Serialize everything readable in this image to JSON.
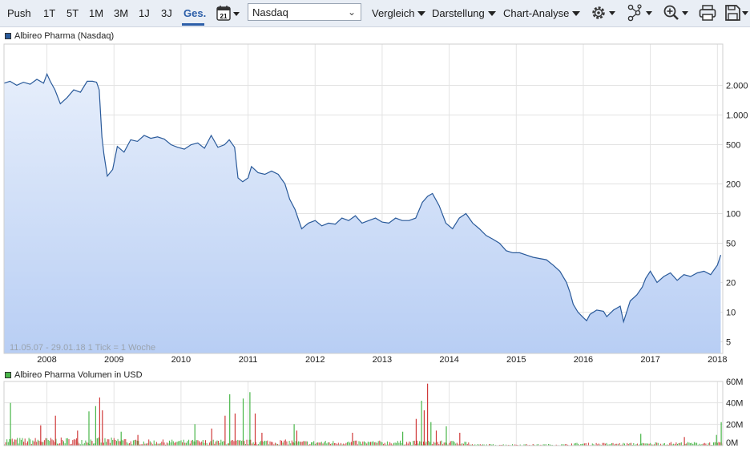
{
  "toolbar": {
    "ranges": [
      "Push",
      "1T",
      "5T",
      "1M",
      "3M",
      "1J",
      "3J",
      "Ges."
    ],
    "active_range": "Ges.",
    "calendar_day": "21",
    "exchange": "Nasdaq",
    "menus": [
      "Vergleich",
      "Darstellung",
      "Chart-Analyse"
    ],
    "icons": [
      "gear-icon",
      "network-icon",
      "zoom-icon",
      "print-icon",
      "save-icon"
    ]
  },
  "price_legend": "Albireo Pharma (Nasdaq)",
  "volume_legend": "Albireo Pharma Volumen in USD",
  "range_note": "11.05.07 - 29.01.18   1 Tick = 1 Woche",
  "colors": {
    "line": "#2a5a9a",
    "area_top": "#e6eefb",
    "area_bottom": "#b8cef4",
    "vol_up": "#49b649",
    "vol_down": "#d03a3a",
    "grid": "#e3e3e3",
    "toolbar_bg": "#e9eef5",
    "accent": "#2c5ea8"
  },
  "chart_data": [
    {
      "type": "area",
      "title": "Albireo Pharma (Nasdaq)",
      "y_scale": "log",
      "yticks": [
        5,
        10,
        20,
        50,
        100,
        200,
        500,
        1000,
        2000
      ],
      "ytick_labels": [
        "5",
        "10",
        "20",
        "50",
        "100",
        "200",
        "500",
        "1.000",
        "2.000"
      ],
      "xticks": [
        2008,
        2009,
        2010,
        2011,
        2012,
        2013,
        2014,
        2015,
        2016,
        2017,
        2018
      ],
      "x_range": [
        2007.36,
        2018.08
      ],
      "grid": true,
      "series": [
        {
          "x": [
            2007.36,
            2007.45,
            2007.55,
            2007.65,
            2007.75,
            2007.85,
            2007.95,
            2008.0,
            2008.05,
            2008.12,
            2008.2,
            2008.3,
            2008.4,
            2008.5,
            2008.6,
            2008.68,
            2008.74,
            2008.78,
            2008.82,
            2008.85,
            2008.9,
            2008.98,
            2009.05,
            2009.15,
            2009.25,
            2009.35,
            2009.45,
            2009.55,
            2009.65,
            2009.75,
            2009.85,
            2009.95,
            2010.05,
            2010.15,
            2010.25,
            2010.35,
            2010.45,
            2010.55,
            2010.65,
            2010.72,
            2010.8,
            2010.85,
            2010.92,
            2011.0,
            2011.05,
            2011.15,
            2011.25,
            2011.35,
            2011.45,
            2011.55,
            2011.62,
            2011.7,
            2011.8,
            2011.9,
            2012.0,
            2012.1,
            2012.2,
            2012.3,
            2012.4,
            2012.5,
            2012.6,
            2012.7,
            2012.8,
            2012.9,
            2013.0,
            2013.1,
            2013.2,
            2013.3,
            2013.4,
            2013.5,
            2013.6,
            2013.68,
            2013.75,
            2013.85,
            2013.95,
            2014.05,
            2014.15,
            2014.25,
            2014.35,
            2014.45,
            2014.55,
            2014.65,
            2014.75,
            2014.85,
            2014.95,
            2015.05,
            2015.15,
            2015.25,
            2015.35,
            2015.45,
            2015.55,
            2015.65,
            2015.75,
            2015.8,
            2015.85,
            2015.92,
            2016.0,
            2016.05,
            2016.1,
            2016.2,
            2016.3,
            2016.35,
            2016.45,
            2016.55,
            2016.6,
            2016.7,
            2016.8,
            2016.88,
            2016.93,
            2017.0,
            2017.1,
            2017.2,
            2017.3,
            2017.4,
            2017.5,
            2017.6,
            2017.7,
            2017.8,
            2017.9,
            2018.0,
            2018.05
          ],
          "y": [
            2100,
            2200,
            2000,
            2150,
            2050,
            2300,
            2100,
            2600,
            2200,
            1800,
            1300,
            1500,
            1800,
            1700,
            2200,
            2200,
            2150,
            1800,
            600,
            400,
            240,
            280,
            480,
            420,
            560,
            540,
            620,
            580,
            600,
            570,
            500,
            470,
            450,
            500,
            520,
            460,
            620,
            470,
            500,
            560,
            470,
            230,
            210,
            230,
            300,
            260,
            250,
            270,
            250,
            200,
            140,
            110,
            70,
            80,
            85,
            75,
            80,
            78,
            90,
            85,
            95,
            80,
            85,
            90,
            82,
            80,
            90,
            85,
            85,
            90,
            130,
            150,
            160,
            120,
            80,
            70,
            90,
            100,
            80,
            70,
            60,
            55,
            50,
            42,
            40,
            40,
            38,
            36,
            35,
            34,
            30,
            26,
            20,
            16,
            12,
            10,
            8.8,
            8.2,
            9.5,
            10.5,
            10.2,
            9,
            10.5,
            11.5,
            8,
            13,
            15,
            18,
            22,
            26,
            20,
            23,
            25,
            21,
            24,
            23,
            25,
            26,
            24,
            30,
            38
          ]
        }
      ]
    },
    {
      "type": "bar",
      "title": "Albireo Pharma Volumen in USD",
      "yticks": [
        0,
        20,
        40,
        60
      ],
      "ytick_labels": [
        "0M",
        "20M",
        "40M",
        "60M"
      ],
      "ylim": [
        0,
        60
      ],
      "unit": "M USD",
      "x_range": [
        2007.36,
        2018.08
      ],
      "spikes": [
        {
          "x": 2007.45,
          "v": 40,
          "up": true
        },
        {
          "x": 2007.9,
          "v": 19,
          "up": false
        },
        {
          "x": 2008.12,
          "v": 28,
          "up": false
        },
        {
          "x": 2008.45,
          "v": 14,
          "up": false
        },
        {
          "x": 2008.62,
          "v": 32,
          "up": true
        },
        {
          "x": 2008.72,
          "v": 37,
          "up": true
        },
        {
          "x": 2008.78,
          "v": 45,
          "up": false
        },
        {
          "x": 2008.82,
          "v": 33,
          "up": false
        },
        {
          "x": 2009.1,
          "v": 13,
          "up": true
        },
        {
          "x": 2009.35,
          "v": 10,
          "up": false
        },
        {
          "x": 2010.2,
          "v": 20,
          "up": true
        },
        {
          "x": 2010.45,
          "v": 16,
          "up": false
        },
        {
          "x": 2010.65,
          "v": 28,
          "up": false
        },
        {
          "x": 2010.72,
          "v": 48,
          "up": true
        },
        {
          "x": 2010.8,
          "v": 30,
          "up": false
        },
        {
          "x": 2010.92,
          "v": 44,
          "up": true
        },
        {
          "x": 2011.02,
          "v": 50,
          "up": true
        },
        {
          "x": 2011.1,
          "v": 30,
          "up": false
        },
        {
          "x": 2011.2,
          "v": 12,
          "up": false
        },
        {
          "x": 2011.68,
          "v": 20,
          "up": true
        },
        {
          "x": 2011.72,
          "v": 14,
          "up": false
        },
        {
          "x": 2012.55,
          "v": 12,
          "up": false
        },
        {
          "x": 2013.3,
          "v": 13,
          "up": true
        },
        {
          "x": 2013.5,
          "v": 25,
          "up": false
        },
        {
          "x": 2013.58,
          "v": 42,
          "up": true
        },
        {
          "x": 2013.62,
          "v": 33,
          "up": false
        },
        {
          "x": 2013.67,
          "v": 58,
          "up": false
        },
        {
          "x": 2013.72,
          "v": 22,
          "up": true
        },
        {
          "x": 2013.8,
          "v": 14,
          "up": false
        },
        {
          "x": 2013.95,
          "v": 18,
          "up": true
        },
        {
          "x": 2014.15,
          "v": 12,
          "up": false
        },
        {
          "x": 2016.85,
          "v": 11,
          "up": true
        },
        {
          "x": 2017.5,
          "v": 8,
          "up": false
        },
        {
          "x": 2017.98,
          "v": 10,
          "up": true
        },
        {
          "x": 2018.05,
          "v": 22,
          "up": true
        }
      ]
    }
  ]
}
